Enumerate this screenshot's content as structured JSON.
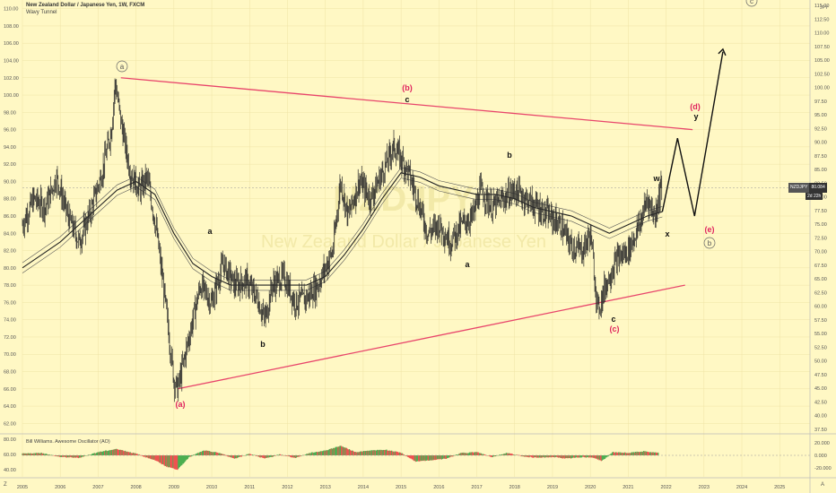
{
  "header": {
    "title": "New Zealand Dollar / Japanese Yen, 1W, FXCM",
    "indicator": "Wavy Tunnel"
  },
  "watermark": {
    "symbol": "NZDJPY",
    "name": "New Zealand Dollar / Japanese Yen"
  },
  "price_badge": {
    "symbol": "NZDJPY",
    "price": "80.084",
    "countdown": "2d 22h"
  },
  "currency_label": "JPY",
  "oscillator": {
    "title": "Bill Williams. Awesome Oscillator (AO)",
    "right_ticks": [
      "20.000",
      "0.000",
      "-20.000"
    ],
    "left_ticks": [
      "80.00",
      "60.00",
      "40.00"
    ]
  },
  "left_axis_ticks": [
    "110.00",
    "108.00",
    "106.00",
    "104.00",
    "102.00",
    "100.00",
    "98.00",
    "96.00",
    "94.00",
    "92.00",
    "90.00",
    "88.00",
    "86.00",
    "84.00",
    "82.00",
    "80.00",
    "78.00",
    "76.00",
    "74.00",
    "72.00",
    "70.00",
    "68.00",
    "66.00",
    "64.00",
    "62.00"
  ],
  "right_axis_ticks": [
    "115.00",
    "112.50",
    "110.00",
    "107.50",
    "105.00",
    "102.50",
    "100.00",
    "97.50",
    "95.00",
    "92.50",
    "90.00",
    "87.50",
    "85.00",
    "82.50",
    "80.00",
    "77.50",
    "75.00",
    "72.50",
    "70.00",
    "67.50",
    "65.00",
    "62.50",
    "60.00",
    "57.50",
    "55.00",
    "52.50",
    "50.00",
    "47.50",
    "45.00",
    "42.50",
    "40.00",
    "37.50"
  ],
  "x_axis_ticks": [
    "2005",
    "2006",
    "2007",
    "2008",
    "2009",
    "2010",
    "2011",
    "2012",
    "2013",
    "2014",
    "2015",
    "2016",
    "2017",
    "2018",
    "2019",
    "2020",
    "2021",
    "2022",
    "2023",
    "2024",
    "2025"
  ],
  "axis_corner_left": "Z",
  "axis_corner_right": "A",
  "wave_labels": [
    "a",
    "(b)",
    "c",
    "(d)",
    "y",
    "b",
    "w",
    "x",
    "(e)",
    "b",
    "a",
    "a",
    "b",
    "c",
    "(c)",
    "(a)",
    "c"
  ],
  "colors": {
    "background": "#fff8c4",
    "price": "#2a2a2a",
    "trendline": "#e8456b",
    "wave_red": "#e0245e",
    "ao_up": "#4caf50",
    "ao_down": "#ef5350"
  },
  "chart_data": {
    "type": "line",
    "title": "New Zealand Dollar / Japanese Yen, 1W, FXCM",
    "ylim": [
      61,
      111
    ],
    "x_range": [
      2005,
      2025.8
    ],
    "series": [
      {
        "name": "NZDJPY",
        "x": [
          2005.0,
          2005.3,
          2005.6,
          2005.9,
          2006.2,
          2006.5,
          2006.8,
          2007.1,
          2007.35,
          2007.45,
          2007.6,
          2007.85,
          2008.1,
          2008.3,
          2008.55,
          2008.8,
          2009.0,
          2009.1,
          2009.4,
          2009.7,
          2010.0,
          2010.3,
          2010.6,
          2010.9,
          2011.2,
          2011.4,
          2011.6,
          2011.9,
          2012.2,
          2012.5,
          2012.8,
          2013.0,
          2013.2,
          2013.4,
          2013.6,
          2013.9,
          2014.2,
          2014.5,
          2014.8,
          2014.95,
          2015.2,
          2015.5,
          2015.7,
          2016.0,
          2016.3,
          2016.6,
          2016.9,
          2017.1,
          2017.4,
          2017.7,
          2018.0,
          2018.3,
          2018.6,
          2018.9,
          2019.2,
          2019.5,
          2019.8,
          2020.0,
          2020.2,
          2020.4,
          2020.7,
          2021.0,
          2021.3,
          2021.5,
          2021.7,
          2021.9
        ],
        "y": [
          85.0,
          88.0,
          87.0,
          90.5,
          86.0,
          83.0,
          86.5,
          91.0,
          96.0,
          101.5,
          97.0,
          91.0,
          89.0,
          90.5,
          84.0,
          75.0,
          67.0,
          66.0,
          72.0,
          78.0,
          76.0,
          80.5,
          78.0,
          78.5,
          76.5,
          74.0,
          78.0,
          79.0,
          76.0,
          76.5,
          78.0,
          80.0,
          82.0,
          90.0,
          86.0,
          90.0,
          88.0,
          91.0,
          94.0,
          93.0,
          91.0,
          87.0,
          84.0,
          85.0,
          83.0,
          85.0,
          86.0,
          89.0,
          87.0,
          88.0,
          89.0,
          88.0,
          87.0,
          86.0,
          85.0,
          82.5,
          82.0,
          84.0,
          75.0,
          78.0,
          81.0,
          82.0,
          85.0,
          88.0,
          86.0,
          90.2
        ]
      },
      {
        "name": "Wavy Tunnel",
        "x": [
          2005.0,
          2005.5,
          2006.0,
          2006.5,
          2007.0,
          2007.5,
          2008.0,
          2008.5,
          2009.0,
          2009.5,
          2010.0,
          2010.5,
          2011.0,
          2011.5,
          2012.0,
          2012.5,
          2013.0,
          2013.5,
          2014.0,
          2014.5,
          2015.0,
          2015.5,
          2016.0,
          2016.5,
          2017.0,
          2017.5,
          2018.0,
          2018.5,
          2019.0,
          2019.5,
          2020.0,
          2020.5,
          2021.0,
          2021.5,
          2021.9
        ],
        "y": [
          80.0,
          81.5,
          83.0,
          85.0,
          87.0,
          89.0,
          90.0,
          88.5,
          84.0,
          80.5,
          79.0,
          78.0,
          78.0,
          78.0,
          78.0,
          78.0,
          79.0,
          81.5,
          84.5,
          88.0,
          91.0,
          90.5,
          89.5,
          89.0,
          88.5,
          88.5,
          88.0,
          87.0,
          86.5,
          86.0,
          85.0,
          84.0,
          85.0,
          86.0,
          86.5
        ]
      }
    ],
    "projection": {
      "name": "wave projection",
      "x": [
        2021.9,
        2022.3,
        2022.75,
        2023.5
      ],
      "y": [
        86.5,
        95.0,
        86.0,
        105.0
      ]
    },
    "trendlines": [
      {
        "x": [
          2007.6,
          2022.7
        ],
        "y": [
          102.0,
          96.0
        ]
      },
      {
        "x": [
          2009.1,
          2022.5
        ],
        "y": [
          66.0,
          78.0
        ]
      }
    ],
    "ao_series": {
      "name": "Bill Williams. Awesome Oscillator (AO)",
      "x": [
        2005.0,
        2005.5,
        2006.0,
        2006.5,
        2007.0,
        2007.5,
        2008.0,
        2008.5,
        2008.8,
        2009.1,
        2009.4,
        2009.8,
        2010.2,
        2010.6,
        2011.0,
        2011.4,
        2011.8,
        2012.2,
        2012.6,
        2013.0,
        2013.4,
        2013.8,
        2014.2,
        2014.6,
        2015.0,
        2015.4,
        2015.8,
        2016.2,
        2016.6,
        2017.0,
        2017.4,
        2017.8,
        2018.2,
        2018.6,
        2019.0,
        2019.4,
        2019.8,
        2020.1,
        2020.3,
        2020.6,
        2021.0,
        2021.4,
        2021.8
      ],
      "y": [
        2,
        3,
        -2,
        -3,
        4,
        8,
        2,
        -6,
        -14,
        -18,
        -2,
        6,
        3,
        -4,
        2,
        -4,
        1,
        -3,
        3,
        6,
        12,
        4,
        6,
        7,
        3,
        -8,
        -6,
        -4,
        3,
        4,
        -2,
        3,
        -1,
        -3,
        -2,
        -4,
        -2,
        -3,
        -7,
        4,
        3,
        5,
        3
      ]
    },
    "ao_ylim": [
      -25,
      25
    ]
  }
}
